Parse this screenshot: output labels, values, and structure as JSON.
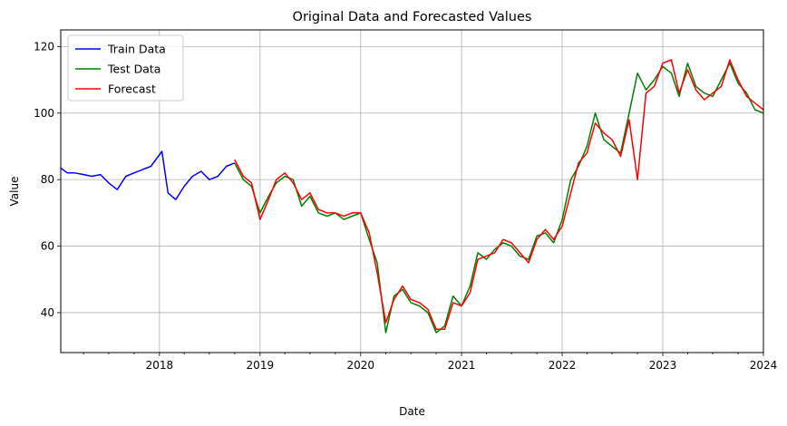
{
  "chart_data": {
    "type": "line",
    "title": "Original Data and Forecasted Values",
    "xlabel": "Date",
    "ylabel": "Value",
    "xlim": [
      "2017-01-08",
      "2024-01-01"
    ],
    "ylim": [
      28,
      125
    ],
    "xticks": [
      {
        "date": "2018-01-01",
        "label": "2018"
      },
      {
        "date": "2019-01-01",
        "label": "2019"
      },
      {
        "date": "2020-01-01",
        "label": "2020"
      },
      {
        "date": "2021-01-01",
        "label": "2021"
      },
      {
        "date": "2022-01-01",
        "label": "2022"
      },
      {
        "date": "2023-01-01",
        "label": "2023"
      },
      {
        "date": "2024-01-01",
        "label": "2024"
      }
    ],
    "yticks": [
      40,
      60,
      80,
      100,
      120
    ],
    "grid": true,
    "legend_position": "top-left",
    "series": [
      {
        "name": "Train Data",
        "color": "#0000ff",
        "x": [
          "2017-01-08",
          "2017-02-01",
          "2017-03-01",
          "2017-04-01",
          "2017-05-01",
          "2017-06-01",
          "2017-07-01",
          "2017-08-01",
          "2017-09-01",
          "2017-10-01",
          "2017-11-01",
          "2017-12-01",
          "2018-01-10",
          "2018-02-01",
          "2018-03-01",
          "2018-04-01",
          "2018-05-01",
          "2018-06-01",
          "2018-07-01",
          "2018-08-01",
          "2018-09-01",
          "2018-10-01"
        ],
        "values": [
          83.5,
          82,
          82,
          81.5,
          81,
          81.5,
          79,
          77,
          81,
          82,
          83,
          84,
          88.5,
          76,
          74,
          78,
          81,
          82.5,
          80,
          81,
          84,
          85
        ]
      },
      {
        "name": "Test Data",
        "color": "#008000",
        "x": [
          "2018-10-01",
          "2018-11-01",
          "2018-12-01",
          "2019-01-01",
          "2019-02-01",
          "2019-03-01",
          "2019-04-01",
          "2019-05-01",
          "2019-06-01",
          "2019-07-01",
          "2019-08-01",
          "2019-09-01",
          "2019-10-01",
          "2019-11-01",
          "2019-12-01",
          "2020-01-01",
          "2020-02-01",
          "2020-03-01",
          "2020-04-01",
          "2020-05-01",
          "2020-06-01",
          "2020-07-01",
          "2020-08-01",
          "2020-09-01",
          "2020-10-01",
          "2020-11-01",
          "2020-12-01",
          "2021-01-01",
          "2021-02-01",
          "2021-03-01",
          "2021-04-01",
          "2021-05-01",
          "2021-06-01",
          "2021-07-01",
          "2021-08-01",
          "2021-09-01",
          "2021-10-01",
          "2021-11-01",
          "2021-12-01",
          "2022-01-01",
          "2022-02-01",
          "2022-03-01",
          "2022-04-01",
          "2022-05-01",
          "2022-06-01",
          "2022-07-01",
          "2022-08-01",
          "2022-09-01",
          "2022-10-01",
          "2022-11-01",
          "2022-12-01",
          "2023-01-01",
          "2023-02-01",
          "2023-03-01",
          "2023-04-01",
          "2023-05-01",
          "2023-06-01",
          "2023-07-01",
          "2023-08-01",
          "2023-09-01",
          "2023-10-01",
          "2023-11-01",
          "2023-12-01",
          "2024-01-01"
        ],
        "values": [
          85,
          80,
          78,
          70,
          75,
          79,
          81,
          80,
          72,
          75,
          70,
          69,
          70,
          68,
          69,
          70,
          62,
          55,
          34,
          45,
          47,
          43,
          42,
          40,
          34,
          36,
          45,
          42,
          48,
          58,
          56,
          59,
          61,
          60,
          57,
          56,
          63,
          64,
          61,
          68,
          80,
          84,
          90,
          100,
          92,
          90,
          88,
          100,
          112,
          107,
          110,
          114,
          112,
          105,
          115,
          108,
          106,
          105,
          110,
          115,
          109,
          106,
          101,
          100
        ]
      },
      {
        "name": "Forecast",
        "color": "#ff0000",
        "x": [
          "2018-10-01",
          "2018-11-01",
          "2018-12-01",
          "2019-01-01",
          "2019-02-01",
          "2019-03-01",
          "2019-04-01",
          "2019-05-01",
          "2019-06-01",
          "2019-07-01",
          "2019-08-01",
          "2019-09-01",
          "2019-10-01",
          "2019-11-01",
          "2019-12-01",
          "2020-01-01",
          "2020-02-01",
          "2020-03-01",
          "2020-04-01",
          "2020-05-01",
          "2020-06-01",
          "2020-07-01",
          "2020-08-01",
          "2020-09-01",
          "2020-10-01",
          "2020-11-01",
          "2020-12-01",
          "2021-01-01",
          "2021-02-01",
          "2021-03-01",
          "2021-04-01",
          "2021-05-01",
          "2021-06-01",
          "2021-07-01",
          "2021-08-01",
          "2021-09-01",
          "2021-10-01",
          "2021-11-01",
          "2021-12-01",
          "2022-01-01",
          "2022-02-01",
          "2022-03-01",
          "2022-04-01",
          "2022-05-01",
          "2022-06-01",
          "2022-07-01",
          "2022-08-01",
          "2022-09-01",
          "2022-10-01",
          "2022-11-01",
          "2022-12-01",
          "2023-01-01",
          "2023-02-01",
          "2023-03-01",
          "2023-04-01",
          "2023-05-01",
          "2023-06-01",
          "2023-07-01",
          "2023-08-01",
          "2023-09-01",
          "2023-10-01",
          "2023-11-01",
          "2023-12-01",
          "2024-01-01"
        ],
        "values": [
          86,
          81,
          79,
          68,
          74,
          80,
          82,
          79,
          74,
          76,
          71,
          70,
          70,
          69,
          70,
          70,
          64,
          52,
          37,
          44,
          48,
          44,
          43,
          41,
          35,
          35,
          43,
          42,
          46,
          56,
          57,
          58,
          62,
          61,
          58,
          55,
          62,
          65,
          62,
          66,
          76,
          85,
          88,
          97,
          94,
          92,
          87,
          98,
          80,
          106,
          108,
          115,
          116,
          106,
          113,
          107,
          104,
          106,
          108,
          116,
          110,
          105,
          103,
          101
        ]
      }
    ]
  }
}
